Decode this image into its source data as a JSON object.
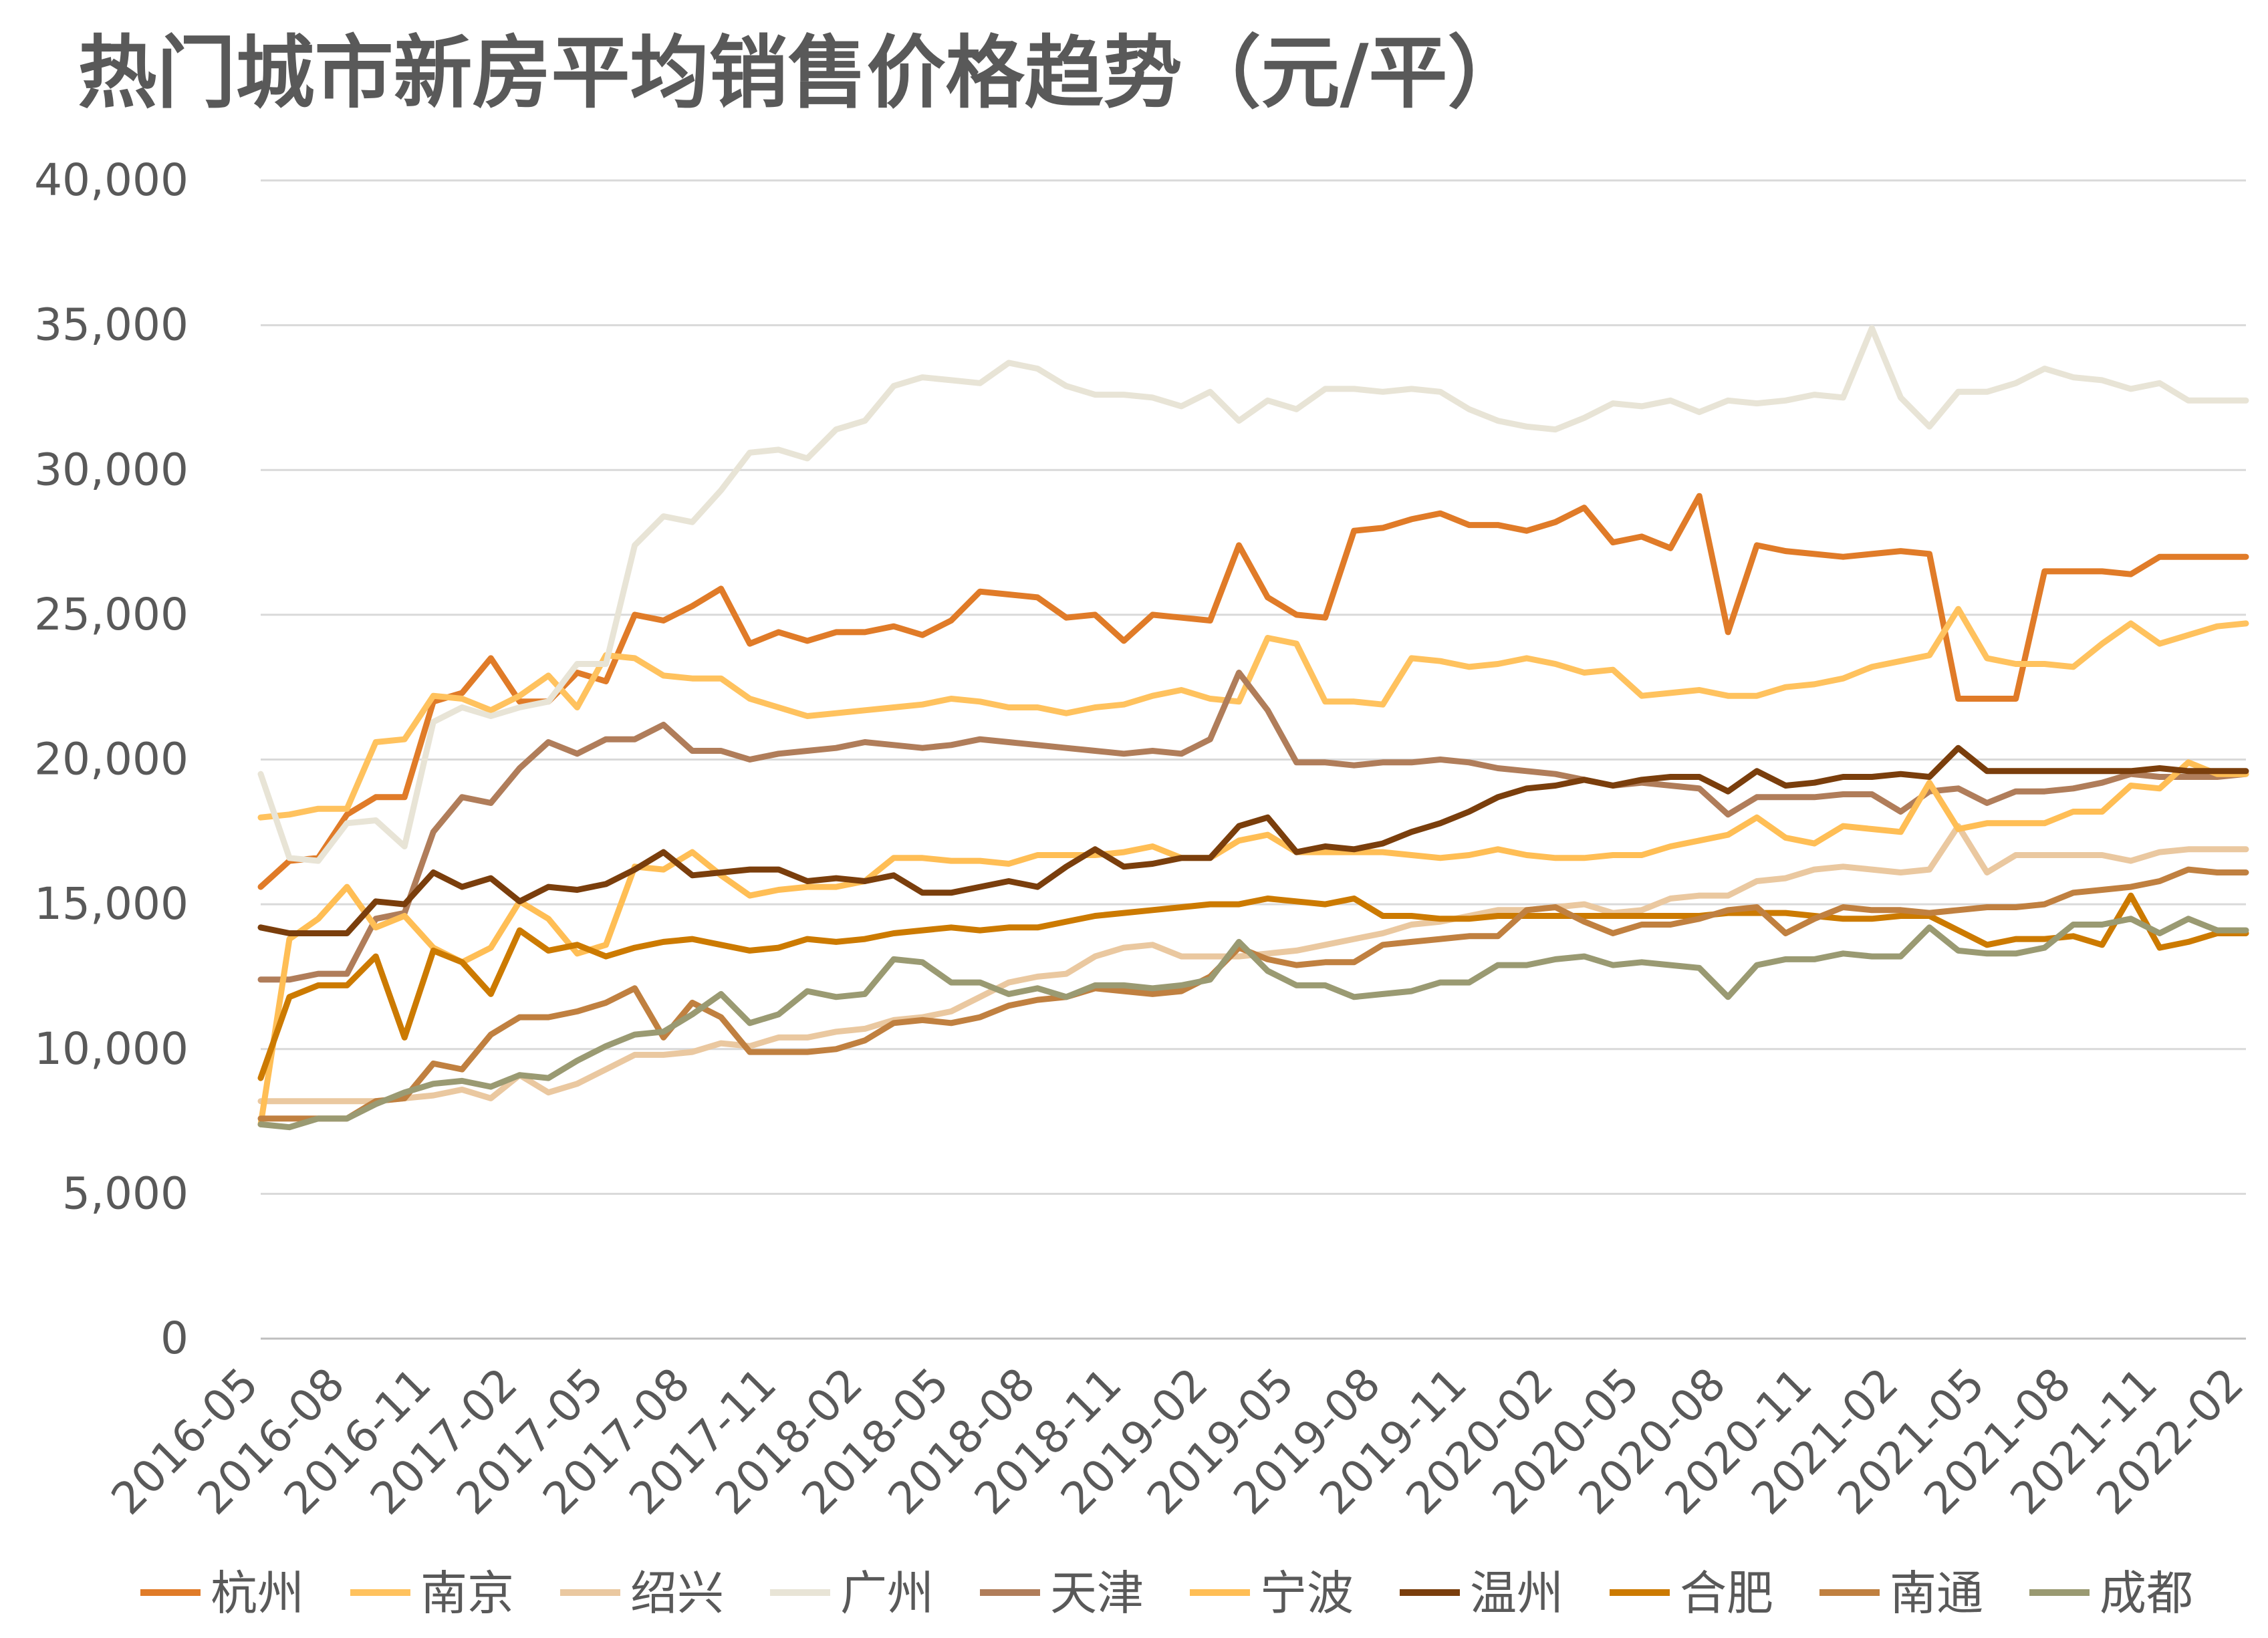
{
  "chart_data": {
    "type": "line",
    "title": "热门城市新房平均销售价格趋势（元/平）",
    "xlabel": "",
    "ylabel": "",
    "ylim": [
      0,
      40000
    ],
    "yticks": [
      0,
      5000,
      10000,
      15000,
      20000,
      25000,
      30000,
      35000,
      40000
    ],
    "ytick_labels": [
      "0",
      "5,000",
      "10,000",
      "15,000",
      "20,000",
      "25,000",
      "30,000",
      "35,000",
      "40,000"
    ],
    "xtick_labels": [
      "2016-05",
      "2016-08",
      "2016-11",
      "2017-02",
      "2017-05",
      "2017-08",
      "2017-11",
      "2018-02",
      "2018-05",
      "2018-08",
      "2018-11",
      "2019-02",
      "2019-05",
      "2019-08",
      "2019-11",
      "2020-02",
      "2020-05",
      "2020-08",
      "2020-11",
      "2021-02",
      "2021-05",
      "2021-08",
      "2021-11",
      "2022-02"
    ],
    "xtick_index": [
      0,
      3,
      6,
      9,
      12,
      15,
      18,
      21,
      24,
      27,
      30,
      33,
      36,
      39,
      42,
      45,
      48,
      51,
      54,
      57,
      60,
      63,
      66,
      69
    ],
    "legend_position": "bottom",
    "grid": true,
    "series": [
      {
        "name": "杭州",
        "color": "#E07B28",
        "values": [
          15600,
          16500,
          16600,
          18100,
          18700,
          18700,
          22000,
          22300,
          23500,
          22000,
          22000,
          23000,
          22700,
          25000,
          24800,
          25300,
          25900,
          24000,
          24400,
          24100,
          24400,
          24400,
          24600,
          24300,
          24800,
          25800,
          25700,
          25600,
          24900,
          25000,
          24100,
          25000,
          24900,
          24800,
          27400,
          25600,
          25000,
          24900,
          27900,
          28000,
          28300,
          28500,
          28100,
          28100,
          27900,
          28200,
          28700,
          27500,
          27700,
          27300,
          29100,
          24400,
          27400,
          27200,
          27100,
          27000,
          27100,
          27200,
          27100,
          22100,
          22100,
          22100,
          26500,
          26500,
          26500,
          26400,
          27000,
          27000,
          27000,
          27000
        ]
      },
      {
        "name": "南京",
        "color": "#FFC25E",
        "values": [
          18000,
          18100,
          18300,
          18300,
          20600,
          20700,
          22200,
          22100,
          21700,
          22200,
          22900,
          21800,
          23600,
          23500,
          22900,
          22800,
          22800,
          22100,
          21800,
          21500,
          21600,
          21700,
          21800,
          21900,
          22100,
          22000,
          21800,
          21800,
          21600,
          21800,
          21900,
          22200,
          22400,
          22100,
          22000,
          24200,
          24000,
          22000,
          22000,
          21900,
          23500,
          23400,
          23200,
          23300,
          23500,
          23300,
          23000,
          23100,
          22200,
          22300,
          22400,
          22200,
          22200,
          22500,
          22600,
          22800,
          23200,
          23400,
          23600,
          25200,
          23500,
          23300,
          23300,
          23200,
          24000,
          24700,
          24000,
          24300,
          24600,
          24700
        ]
      },
      {
        "name": "绍兴",
        "color": "#EAC8A0",
        "values": [
          8200,
          8200,
          8200,
          8200,
          8200,
          8300,
          8400,
          8600,
          8300,
          9100,
          8500,
          8800,
          9300,
          9800,
          9800,
          9900,
          10200,
          10100,
          10400,
          10400,
          10600,
          10700,
          11000,
          11100,
          11300,
          11800,
          12300,
          12500,
          12600,
          13200,
          13500,
          13600,
          13200,
          13200,
          13200,
          13300,
          13400,
          13600,
          13800,
          14000,
          14300,
          14400,
          14600,
          14800,
          14800,
          14900,
          15000,
          14700,
          14800,
          15200,
          15300,
          15300,
          15800,
          15900,
          16200,
          16300,
          16200,
          16100,
          16200,
          17700,
          16100,
          16700,
          16700,
          16700,
          16700,
          16500,
          16800,
          16900,
          16900,
          16900
        ]
      },
      {
        "name": "广州",
        "color": "#E8E4D6",
        "values": [
          19500,
          16600,
          16500,
          17800,
          17900,
          17000,
          21300,
          21800,
          21500,
          21800,
          22000,
          23300,
          23300,
          27400,
          28400,
          28200,
          29300,
          30600,
          30700,
          30400,
          31400,
          31700,
          32900,
          33200,
          33100,
          33000,
          33700,
          33500,
          32900,
          32600,
          32600,
          32500,
          32200,
          32700,
          31700,
          32400,
          32100,
          32800,
          32800,
          32700,
          32800,
          32700,
          32100,
          31700,
          31500,
          31400,
          31800,
          32300,
          32200,
          32400,
          32000,
          32400,
          32300,
          32400,
          32600,
          32500,
          34900,
          32500,
          31500,
          32700,
          32700,
          33000,
          33500,
          33200,
          33100,
          32800,
          33000,
          32400,
          32400,
          32400
        ]
      },
      {
        "name": "天津",
        "color": "#B07D5A",
        "values": [
          12400,
          12400,
          12600,
          12600,
          14500,
          14700,
          17500,
          18700,
          18500,
          19700,
          20600,
          20200,
          20700,
          20700,
          21200,
          20300,
          20300,
          20000,
          20200,
          20300,
          20400,
          20600,
          20500,
          20400,
          20500,
          20700,
          20600,
          20500,
          20400,
          20300,
          20200,
          20300,
          20200,
          20700,
          23000,
          21700,
          19900,
          19900,
          19800,
          19900,
          19900,
          20000,
          19900,
          19700,
          19600,
          19500,
          19300,
          19100,
          19200,
          19100,
          19000,
          18100,
          18700,
          18700,
          18700,
          18800,
          18800,
          18200,
          18900,
          19000,
          18500,
          18900,
          18900,
          19000,
          19200,
          19500,
          19400,
          19400,
          19400,
          19500
        ]
      },
      {
        "name": "宁波",
        "color": "#FFBE55",
        "values": [
          7400,
          13800,
          14500,
          15600,
          14200,
          14600,
          13500,
          13000,
          13500,
          15100,
          14500,
          13300,
          13600,
          16300,
          16200,
          16800,
          16000,
          15300,
          15500,
          15600,
          15600,
          15800,
          16600,
          16600,
          16500,
          16500,
          16400,
          16700,
          16700,
          16700,
          16800,
          17000,
          16600,
          16600,
          17200,
          17400,
          16800,
          16800,
          16800,
          16800,
          16700,
          16600,
          16700,
          16900,
          16700,
          16600,
          16600,
          16700,
          16700,
          17000,
          17200,
          17400,
          18000,
          17300,
          17100,
          17700,
          17600,
          17500,
          19200,
          17600,
          17800,
          17800,
          17800,
          18200,
          18200,
          19100,
          19000,
          19900,
          19500,
          19500
        ]
      },
      {
        "name": "温州",
        "color": "#7A3E0C",
        "values": [
          14200,
          14000,
          14000,
          14000,
          15100,
          15000,
          16100,
          15600,
          15900,
          15100,
          15600,
          15500,
          15700,
          16200,
          16800,
          16000,
          16100,
          16200,
          16200,
          15800,
          15900,
          15800,
          16000,
          15400,
          15400,
          15600,
          15800,
          15600,
          16300,
          16900,
          16300,
          16400,
          16600,
          16600,
          17700,
          18000,
          16800,
          17000,
          16900,
          17100,
          17500,
          17800,
          18200,
          18700,
          19000,
          19100,
          19300,
          19100,
          19300,
          19400,
          19400,
          18900,
          19600,
          19100,
          19200,
          19400,
          19400,
          19500,
          19400,
          20400,
          19600,
          19600,
          19600,
          19600,
          19600,
          19600,
          19700,
          19600,
          19600,
          19600
        ]
      },
      {
        "name": "合肥",
        "color": "#CC7A00",
        "values": [
          9000,
          11800,
          12200,
          12200,
          13200,
          10400,
          13400,
          13000,
          11900,
          14100,
          13400,
          13600,
          13200,
          13500,
          13700,
          13800,
          13600,
          13400,
          13500,
          13800,
          13700,
          13800,
          14000,
          14100,
          14200,
          14100,
          14200,
          14200,
          14400,
          14600,
          14700,
          14800,
          14900,
          15000,
          15000,
          15200,
          15100,
          15000,
          15200,
          14600,
          14600,
          14500,
          14500,
          14600,
          14600,
          14600,
          14600,
          14600,
          14600,
          14600,
          14600,
          14700,
          14700,
          14700,
          14600,
          14500,
          14500,
          14600,
          14600,
          14100,
          13600,
          13800,
          13800,
          13900,
          13600,
          15300,
          13500,
          13700,
          14000,
          14000
        ]
      },
      {
        "name": "南通",
        "color": "#C08040",
        "values": [
          7600,
          7600,
          7600,
          7600,
          8200,
          8300,
          9500,
          9300,
          10500,
          11100,
          11100,
          11300,
          11600,
          12100,
          10400,
          11600,
          11100,
          9900,
          9900,
          9900,
          10000,
          10300,
          10900,
          11000,
          10900,
          11100,
          11500,
          11700,
          11800,
          12100,
          12000,
          11900,
          12000,
          12500,
          13500,
          13100,
          12900,
          13000,
          13000,
          13600,
          13700,
          13800,
          13900,
          13900,
          14800,
          14900,
          14400,
          14000,
          14300,
          14300,
          14500,
          14800,
          14900,
          14000,
          14500,
          14900,
          14800,
          14800,
          14700,
          14800,
          14900,
          14900,
          15000,
          15400,
          15500,
          15600,
          15800,
          16200,
          16100,
          16100
        ]
      },
      {
        "name": "成都",
        "color": "#9A9A72",
        "values": [
          7400,
          7300,
          7600,
          7600,
          8100,
          8500,
          8800,
          8900,
          8700,
          9100,
          9000,
          9600,
          10100,
          10500,
          10600,
          11200,
          11900,
          10900,
          11200,
          12000,
          11800,
          11900,
          13100,
          13000,
          12300,
          12300,
          11900,
          12100,
          11800,
          12200,
          12200,
          12100,
          12200,
          12400,
          13700,
          12700,
          12200,
          12200,
          11800,
          11900,
          12000,
          12300,
          12300,
          12900,
          12900,
          13100,
          13200,
          12900,
          13000,
          12900,
          12800,
          11800,
          12900,
          13100,
          13100,
          13300,
          13200,
          13200,
          14200,
          13400,
          13300,
          13300,
          13500,
          14300,
          14300,
          14500,
          14000,
          14500,
          14100,
          14100
        ]
      }
    ]
  }
}
